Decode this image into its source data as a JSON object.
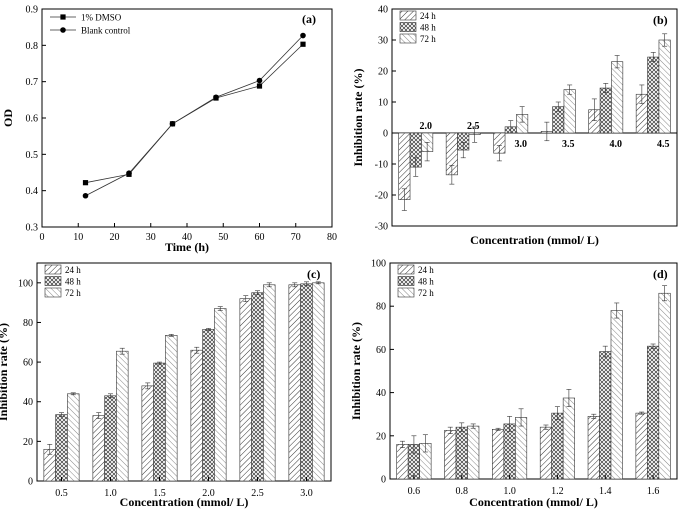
{
  "chart_data": [
    {
      "panel": "(a)",
      "type": "line",
      "xlabel": "Time (h)",
      "ylabel": "OD",
      "xlim": [
        0,
        80
      ],
      "ylim": [
        0.3,
        0.9
      ],
      "xticks": [
        "0",
        "10",
        "20",
        "30",
        "40",
        "50",
        "60",
        "70",
        "80"
      ],
      "yticks": [
        "0.3",
        "0.4",
        "0.5",
        "0.6",
        "0.7",
        "0.8",
        "0.9"
      ],
      "x": [
        12,
        24,
        36,
        48,
        60,
        72
      ],
      "series": [
        {
          "name": "1% DMSO",
          "marker": "square",
          "values": [
            0.422,
            0.445,
            0.584,
            0.655,
            0.688,
            0.803
          ]
        },
        {
          "name": "Blank control",
          "marker": "circle",
          "values": [
            0.386,
            0.448,
            0.584,
            0.657,
            0.703,
            0.827
          ]
        }
      ]
    },
    {
      "panel": "(b)",
      "type": "bar",
      "xlabel": "Concentration (mmol/ L)",
      "ylabel": "Inhibition rate (%)",
      "ylim": [
        -30,
        40
      ],
      "yticks": [
        "-30",
        "-20",
        "-10",
        "0",
        "10",
        "20",
        "30",
        "40"
      ],
      "categories": [
        "2.0",
        "2.5",
        "3.0",
        "3.5",
        "4.0",
        "4.5"
      ],
      "series": [
        {
          "name": "24 h",
          "values": [
            -21.5,
            -13.5,
            -6.5,
            0.5,
            7.5,
            12.5
          ],
          "errors": [
            3.5,
            3.0,
            2.5,
            3.0,
            3.5,
            3.0
          ]
        },
        {
          "name": "48 h",
          "values": [
            -11.0,
            -5.5,
            2.0,
            8.5,
            14.5,
            24.5
          ],
          "errors": [
            3.0,
            2.5,
            2.0,
            1.5,
            1.5,
            1.5
          ]
        },
        {
          "name": "72 h",
          "values": [
            -6.0,
            -0.5,
            6.0,
            14.0,
            23.0,
            30.0
          ],
          "errors": [
            3.0,
            2.5,
            2.5,
            1.5,
            2.0,
            2.0
          ]
        }
      ]
    },
    {
      "panel": "(c)",
      "type": "bar",
      "xlabel": "Concentration (mmol/ L)",
      "ylabel": "Inhibition rate (%)",
      "ylim": [
        0,
        110
      ],
      "yticks": [
        "0",
        "20",
        "40",
        "60",
        "80",
        "100"
      ],
      "categories": [
        "0.5",
        "1.0",
        "1.5",
        "2.0",
        "2.5",
        "3.0"
      ],
      "series": [
        {
          "name": "24 h",
          "values": [
            16,
            33,
            48,
            66,
            92,
            99
          ],
          "errors": [
            2.5,
            1.5,
            1.5,
            1.5,
            1.5,
            1.0
          ]
        },
        {
          "name": "48 h",
          "values": [
            33.5,
            43,
            59.5,
            76.5,
            95,
            99.5
          ],
          "errors": [
            1.0,
            1.0,
            0.5,
            0.5,
            1.0,
            1.0
          ]
        },
        {
          "name": "72 h",
          "values": [
            44,
            65.5,
            73.5,
            87,
            99,
            100
          ],
          "errors": [
            0.5,
            1.5,
            0.5,
            1.0,
            1.0,
            0.5
          ]
        }
      ]
    },
    {
      "panel": "(d)",
      "type": "bar",
      "xlabel": "Concentration (mmol/ L)",
      "ylabel": "Inhibition rate (%)",
      "ylim": [
        0,
        100
      ],
      "yticks": [
        "0",
        "20",
        "40",
        "60",
        "80",
        "100"
      ],
      "categories": [
        "0.6",
        "0.8",
        "1.0",
        "1.2",
        "1.4",
        "1.6"
      ],
      "series": [
        {
          "name": "24 h",
          "values": [
            16,
            22.5,
            23,
            24,
            29,
            30.5
          ],
          "errors": [
            1.5,
            1.5,
            0.5,
            1.0,
            1.0,
            0.5
          ]
        },
        {
          "name": "48 h",
          "values": [
            16,
            24,
            25.5,
            30.5,
            59,
            61.5
          ],
          "errors": [
            4.0,
            2.0,
            3.5,
            3.0,
            2.5,
            1.0
          ]
        },
        {
          "name": "72 h",
          "values": [
            16.5,
            24.5,
            28.5,
            37.5,
            78,
            86
          ],
          "errors": [
            4.0,
            1.0,
            4.0,
            4.0,
            3.5,
            3.5
          ]
        }
      ]
    }
  ]
}
